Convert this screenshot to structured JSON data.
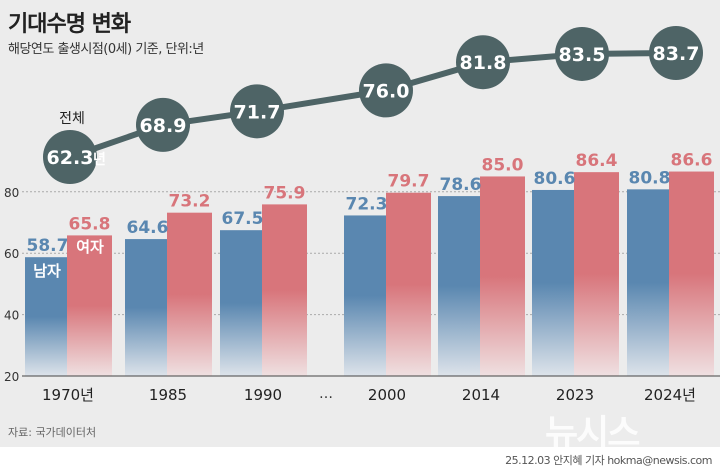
{
  "header": {
    "title": "기대수명 변화",
    "subtitle": "해당연도 출생시점(0세) 기준, 단위:년"
  },
  "footer": {
    "source": "자료: 국가데이터처",
    "credit": "25.12.03 안지혜 기자 hokma@newsis.com",
    "watermark": "뉴시스"
  },
  "chart_data": {
    "type": "bar",
    "categories": [
      "1970년",
      "1985",
      "1990",
      "2000",
      "2014",
      "2023",
      "2024년"
    ],
    "gap_marker": "…",
    "series": [
      {
        "name": "남자",
        "values": [
          58.7,
          64.6,
          67.5,
          72.3,
          78.6,
          80.6,
          80.8
        ],
        "color": "#5a87b0"
      },
      {
        "name": "여자",
        "values": [
          65.8,
          73.2,
          75.9,
          79.7,
          85.0,
          86.4,
          86.6
        ],
        "color": "#d8757b"
      }
    ],
    "total": {
      "name": "전체",
      "values": [
        62.3,
        68.9,
        71.7,
        76.0,
        81.8,
        83.5,
        83.7
      ],
      "first_unit": "년",
      "color": "#4e6466"
    },
    "yticks": [
      20,
      40,
      60,
      80
    ],
    "ylim": [
      20,
      90
    ],
    "grid": true
  }
}
